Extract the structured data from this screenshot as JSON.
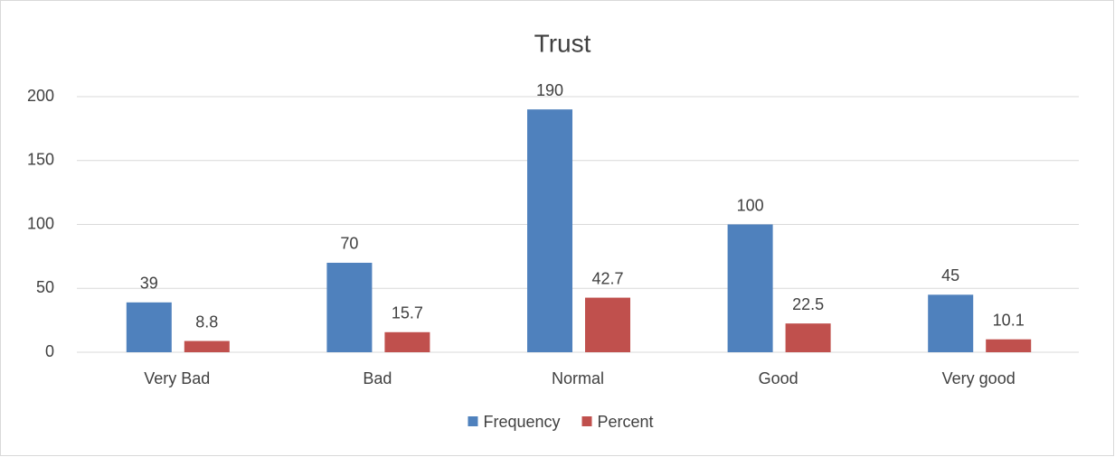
{
  "chart_data": {
    "type": "bar",
    "title": "Trust",
    "categories": [
      "Very Bad",
      "Bad",
      "Normal",
      "Good",
      "Very good"
    ],
    "series": [
      {
        "name": "Frequency",
        "color": "#4f81bd",
        "values": [
          39,
          70,
          190,
          100,
          45
        ]
      },
      {
        "name": "Percent",
        "color": "#c0504d",
        "values": [
          8.8,
          15.7,
          42.7,
          22.5,
          10.1
        ]
      }
    ],
    "ylim": [
      0,
      200
    ],
    "yticks": [
      0,
      50,
      100,
      150,
      200
    ],
    "grid": true,
    "legend": "bottom"
  }
}
